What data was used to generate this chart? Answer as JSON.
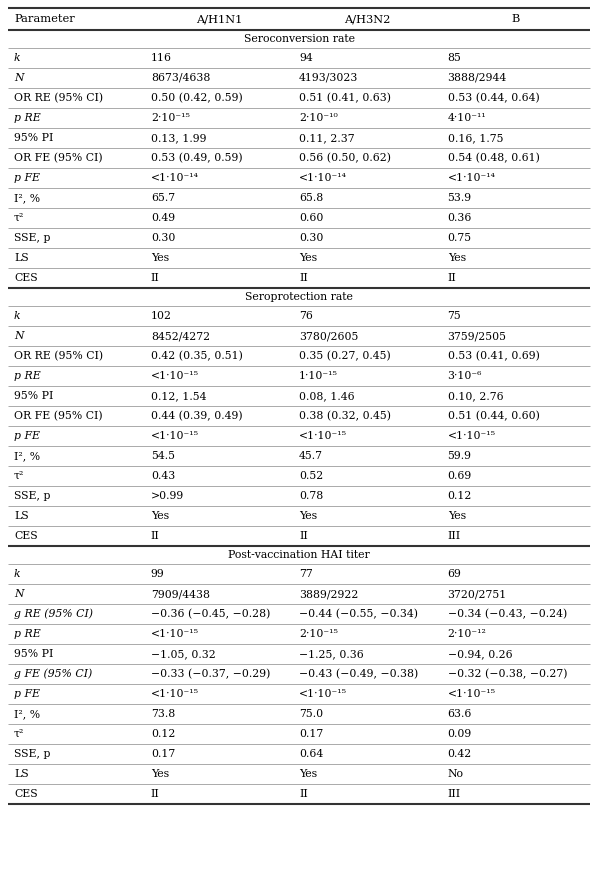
{
  "headers": [
    "Parameter",
    "A/H1N1",
    "A/H3N2",
    "B"
  ],
  "sections": [
    {
      "title": "Seroconversion rate",
      "rows": [
        [
          "k",
          "116",
          "94",
          "85"
        ],
        [
          "N",
          "8673/4638",
          "4193/3023",
          "3888/2944"
        ],
        [
          "OR RE (95% CI)",
          "0.50 (0.42, 0.59)",
          "0.51 (0.41, 0.63)",
          "0.53 (0.44, 0.64)"
        ],
        [
          "p RE",
          "2·10⁻¹⁵",
          "2·10⁻¹⁰",
          "4·10⁻¹¹"
        ],
        [
          "95% PI",
          "0.13, 1.99",
          "0.11, 2.37",
          "0.16, 1.75"
        ],
        [
          "OR FE (95% CI)",
          "0.53 (0.49, 0.59)",
          "0.56 (0.50, 0.62)",
          "0.54 (0.48, 0.61)"
        ],
        [
          "p FE",
          "<1·10⁻¹⁴",
          "<1·10⁻¹⁴",
          "<1·10⁻¹⁴"
        ],
        [
          "I², %",
          "65.7",
          "65.8",
          "53.9"
        ],
        [
          "τ²",
          "0.49",
          "0.60",
          "0.36"
        ],
        [
          "SSE, p",
          "0.30",
          "0.30",
          "0.75"
        ],
        [
          "LS",
          "Yes",
          "Yes",
          "Yes"
        ],
        [
          "CES",
          "II",
          "II",
          "II"
        ]
      ]
    },
    {
      "title": "Seroprotection rate",
      "rows": [
        [
          "k",
          "102",
          "76",
          "75"
        ],
        [
          "N",
          "8452/4272",
          "3780/2605",
          "3759/2505"
        ],
        [
          "OR RE (95% CI)",
          "0.42 (0.35, 0.51)",
          "0.35 (0.27, 0.45)",
          "0.53 (0.41, 0.69)"
        ],
        [
          "p RE",
          "<1·10⁻¹⁵",
          "1·10⁻¹⁵",
          "3·10⁻⁶"
        ],
        [
          "95% PI",
          "0.12, 1.54",
          "0.08, 1.46",
          "0.10, 2.76"
        ],
        [
          "OR FE (95% CI)",
          "0.44 (0.39, 0.49)",
          "0.38 (0.32, 0.45)",
          "0.51 (0.44, 0.60)"
        ],
        [
          "p FE",
          "<1·10⁻¹⁵",
          "<1·10⁻¹⁵",
          "<1·10⁻¹⁵"
        ],
        [
          "I², %",
          "54.5",
          "45.7",
          "59.9"
        ],
        [
          "τ²",
          "0.43",
          "0.52",
          "0.69"
        ],
        [
          "SSE, p",
          ">0.99",
          "0.78",
          "0.12"
        ],
        [
          "LS",
          "Yes",
          "Yes",
          "Yes"
        ],
        [
          "CES",
          "II",
          "II",
          "III"
        ]
      ]
    },
    {
      "title": "Post-vaccination HAI titer",
      "rows": [
        [
          "k",
          "99",
          "77",
          "69"
        ],
        [
          "N",
          "7909/4438",
          "3889/2922",
          "3720/2751"
        ],
        [
          "g RE (95% CI)",
          "−0.36 (−0.45, −0.28)",
          "−0.44 (−0.55, −0.34)",
          "−0.34 (−0.43, −0.24)"
        ],
        [
          "p RE",
          "<1·10⁻¹⁵",
          "2·10⁻¹⁵",
          "2·10⁻¹²"
        ],
        [
          "95% PI",
          "−1.05, 0.32",
          "−1.25, 0.36",
          "−0.94, 0.26"
        ],
        [
          "g FE (95% CI)",
          "−0.33 (−0.37, −0.29)",
          "−0.43 (−0.49, −0.38)",
          "−0.32 (−0.38, −0.27)"
        ],
        [
          "p FE",
          "<1·10⁻¹⁵",
          "<1·10⁻¹⁵",
          "<1·10⁻¹⁵"
        ],
        [
          "I², %",
          "73.8",
          "75.0",
          "63.6"
        ],
        [
          "τ²",
          "0.12",
          "0.17",
          "0.09"
        ],
        [
          "SSE, p",
          "0.17",
          "0.64",
          "0.42"
        ],
        [
          "LS",
          "Yes",
          "Yes",
          "No"
        ],
        [
          "CES",
          "II",
          "II",
          "III"
        ]
      ]
    }
  ],
  "italic_params": [
    "k",
    "N",
    "p RE",
    "p FE",
    "g RE (95% CI)",
    "g FE (95% CI)"
  ],
  "background_color": "#ffffff"
}
